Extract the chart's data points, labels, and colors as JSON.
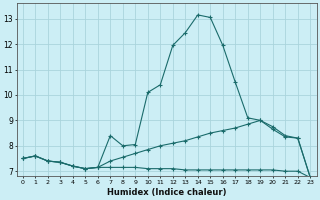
{
  "xlabel": "Humidex (Indice chaleur)",
  "background_color": "#cceef5",
  "grid_color": "#aad4dc",
  "line_color": "#1a6b6b",
  "xlim": [
    -0.5,
    23.5
  ],
  "ylim": [
    6.8,
    13.6
  ],
  "yticks": [
    7,
    8,
    9,
    10,
    11,
    12,
    13
  ],
  "xticks": [
    0,
    1,
    2,
    3,
    4,
    5,
    6,
    7,
    8,
    9,
    10,
    11,
    12,
    13,
    14,
    15,
    16,
    17,
    18,
    19,
    20,
    21,
    22,
    23
  ],
  "line1_x": [
    0,
    1,
    2,
    3,
    4,
    5,
    6,
    7,
    8,
    9,
    10,
    11,
    12,
    13,
    14,
    15,
    16,
    17,
    18,
    19,
    20,
    21,
    22,
    23
  ],
  "line1_y": [
    7.5,
    7.6,
    7.4,
    7.35,
    7.2,
    7.1,
    7.15,
    8.4,
    8.0,
    8.05,
    10.1,
    10.4,
    11.95,
    12.45,
    13.15,
    13.05,
    11.95,
    10.5,
    9.1,
    9.0,
    8.65,
    8.35,
    8.3,
    6.75
  ],
  "line2_x": [
    0,
    1,
    2,
    3,
    4,
    5,
    6,
    7,
    8,
    9,
    10,
    11,
    12,
    13,
    14,
    15,
    16,
    17,
    18,
    19,
    20,
    21,
    22,
    23
  ],
  "line2_y": [
    7.5,
    7.6,
    7.4,
    7.35,
    7.2,
    7.1,
    7.15,
    7.4,
    7.55,
    7.7,
    7.85,
    8.0,
    8.1,
    8.2,
    8.35,
    8.5,
    8.6,
    8.7,
    8.85,
    9.0,
    8.75,
    8.4,
    8.3,
    6.75
  ],
  "line3_x": [
    0,
    1,
    2,
    3,
    4,
    5,
    6,
    7,
    8,
    9,
    10,
    11,
    12,
    13,
    14,
    15,
    16,
    17,
    18,
    19,
    20,
    21,
    22,
    23
  ],
  "line3_y": [
    7.5,
    7.6,
    7.4,
    7.35,
    7.2,
    7.1,
    7.15,
    7.15,
    7.15,
    7.15,
    7.1,
    7.1,
    7.1,
    7.05,
    7.05,
    7.05,
    7.05,
    7.05,
    7.05,
    7.05,
    7.05,
    7.0,
    7.0,
    6.75
  ]
}
